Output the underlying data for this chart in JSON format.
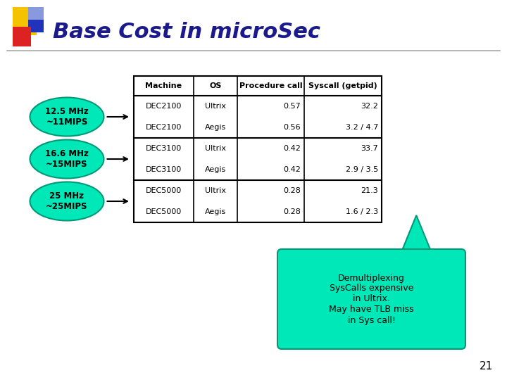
{
  "title": "Base Cost in microSec",
  "title_color": "#1a1a8c",
  "title_fontsize": 22,
  "bg_color": "#ffffff",
  "slide_number": "21",
  "table_headers": [
    "Machine",
    "OS",
    "Procedure call",
    "Syscall (getpid)"
  ],
  "table_data": [
    [
      "DEC2100",
      "Ultrix",
      "0.57",
      "32.2"
    ],
    [
      "DEC2100",
      "Aegis",
      "0.56",
      "3.2 / 4.7"
    ],
    [
      "DEC3100",
      "Ultrix",
      "0.42",
      "33.7"
    ],
    [
      "DEC3100",
      "Aegis",
      "0.42",
      "2.9 / 3.5"
    ],
    [
      "DEC5000",
      "Ultrix",
      "0.28",
      "21.3"
    ],
    [
      "DEC5000",
      "Aegis",
      "0.28",
      "1.6 / 2.3"
    ]
  ],
  "group_divider_rows": [
    2,
    4
  ],
  "ellipse_color": "#00e8b8",
  "ellipse_labels": [
    "12.5 MHz\n~11MIPS",
    "16.6 MHz\n~15MIPS",
    "25 MHz\n~25MIPS"
  ],
  "callout_color": "#00e8b8",
  "callout_text": "Demultiplexing\nSysCalls expensive\nin Ultrix.\nMay have TLB miss\nin Sys call!",
  "arrow_color": "#000000",
  "accent_yellow": "#f5c200",
  "accent_red": "#dd2222",
  "accent_blue": "#2233bb",
  "accent_lightblue": "#8899dd"
}
